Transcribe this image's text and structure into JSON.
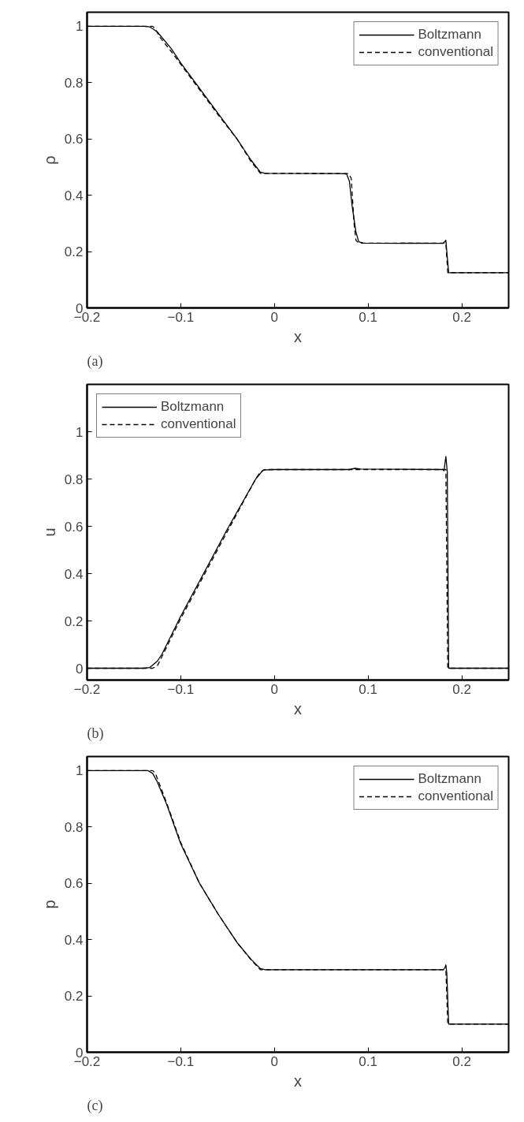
{
  "chart_data": [
    {
      "type": "line",
      "xlabel": "x",
      "ylabel": "ρ",
      "annotations": [
        "(a)"
      ],
      "xlim": [
        -0.2,
        0.25
      ],
      "ylim": [
        0,
        1.05
      ],
      "xticks": [
        -0.2,
        -0.1,
        0,
        0.1,
        0.2
      ],
      "yticks": [
        0,
        0.2,
        0.4,
        0.6,
        0.8,
        1
      ],
      "legend": "top right",
      "grid": false,
      "series": [
        {
          "name": "Boltzmann",
          "color": "#000000",
          "line_style": "solid",
          "x": [
            -0.2,
            -0.14,
            -0.133,
            -0.125,
            -0.11,
            -0.1,
            -0.08,
            -0.06,
            -0.04,
            -0.025,
            -0.015,
            -0.01,
            0.07,
            0.077,
            0.08,
            0.083,
            0.087,
            0.09,
            0.095,
            0.18,
            0.182,
            0.183,
            0.184,
            0.186,
            0.25
          ],
          "values": [
            1,
            1,
            0.998,
            0.98,
            0.92,
            0.87,
            0.78,
            0.69,
            0.6,
            0.525,
            0.482,
            0.478,
            0.477,
            0.476,
            0.45,
            0.36,
            0.27,
            0.235,
            0.23,
            0.229,
            0.236,
            0.24,
            0.2,
            0.125,
            0.125
          ]
        },
        {
          "name": "conventional",
          "color": "#000000",
          "line_style": "dashed",
          "x": [
            -0.2,
            -0.13,
            -0.127,
            -0.122,
            -0.11,
            -0.1,
            -0.08,
            -0.06,
            -0.04,
            -0.025,
            -0.015,
            -0.01,
            0.079,
            0.082,
            0.085,
            0.087,
            0.09,
            0.183,
            0.185,
            0.25
          ],
          "values": [
            1,
            1,
            0.99,
            0.96,
            0.91,
            0.865,
            0.775,
            0.685,
            0.6,
            0.52,
            0.478,
            0.478,
            0.477,
            0.46,
            0.3,
            0.24,
            0.23,
            0.23,
            0.125,
            0.125
          ]
        }
      ]
    },
    {
      "type": "line",
      "xlabel": "x",
      "ylabel": "u",
      "annotations": [
        "(b)"
      ],
      "xlim": [
        -0.2,
        0.25
      ],
      "ylim": [
        -0.05,
        1.2
      ],
      "xticks": [
        -0.2,
        -0.1,
        0,
        0.1,
        0.2
      ],
      "yticks": [
        0,
        0.2,
        0.4,
        0.6,
        0.8,
        1
      ],
      "legend": "top left",
      "grid": false,
      "series": [
        {
          "name": "Boltzmann",
          "color": "#000000",
          "line_style": "solid",
          "x": [
            -0.2,
            -0.14,
            -0.133,
            -0.125,
            -0.12,
            -0.1,
            -0.05,
            -0.02,
            -0.012,
            0,
            0.08,
            0.086,
            0.092,
            0.18,
            0.181,
            0.183,
            0.1845,
            0.186,
            0.25
          ],
          "values": [
            0,
            0,
            0.003,
            0.03,
            0.06,
            0.22,
            0.59,
            0.8,
            0.838,
            0.84,
            0.84,
            0.845,
            0.842,
            0.84,
            0.835,
            0.895,
            0.83,
            0,
            0
          ]
        },
        {
          "name": "conventional",
          "color": "#000000",
          "line_style": "dashed",
          "x": [
            -0.2,
            -0.13,
            -0.125,
            -0.12,
            -0.1,
            -0.05,
            -0.02,
            -0.015,
            -0.01,
            0.183,
            0.185,
            0.25
          ],
          "values": [
            0,
            0,
            0.01,
            0.05,
            0.21,
            0.58,
            0.8,
            0.83,
            0.84,
            0.84,
            0,
            0
          ]
        }
      ]
    },
    {
      "type": "line",
      "xlabel": "x",
      "ylabel": "p",
      "annotations": [
        "(c)"
      ],
      "xlim": [
        -0.2,
        0.25
      ],
      "ylim": [
        0,
        1.05
      ],
      "xticks": [
        -0.2,
        -0.1,
        0,
        0.1,
        0.2
      ],
      "yticks": [
        0,
        0.2,
        0.4,
        0.6,
        0.8,
        1
      ],
      "legend": "top right",
      "grid": false,
      "series": [
        {
          "name": "Boltzmann",
          "color": "#000000",
          "line_style": "solid",
          "x": [
            -0.2,
            -0.135,
            -0.13,
            -0.125,
            -0.115,
            -0.1,
            -0.08,
            -0.06,
            -0.04,
            -0.025,
            -0.015,
            -0.01,
            0.18,
            0.182,
            0.183,
            0.184,
            0.186,
            0.25
          ],
          "values": [
            1,
            1,
            0.99,
            0.96,
            0.88,
            0.74,
            0.6,
            0.49,
            0.39,
            0.33,
            0.297,
            0.293,
            0.293,
            0.3,
            0.31,
            0.28,
            0.1,
            0.1
          ]
        },
        {
          "name": "conventional",
          "color": "#000000",
          "line_style": "dashed",
          "x": [
            -0.2,
            -0.13,
            -0.127,
            -0.123,
            -0.115,
            -0.1,
            -0.08,
            -0.06,
            -0.04,
            -0.025,
            -0.015,
            0.183,
            0.185,
            0.25
          ],
          "values": [
            1,
            1,
            0.99,
            0.955,
            0.885,
            0.745,
            0.6,
            0.49,
            0.39,
            0.328,
            0.293,
            0.293,
            0.1,
            0.1
          ]
        }
      ]
    }
  ]
}
